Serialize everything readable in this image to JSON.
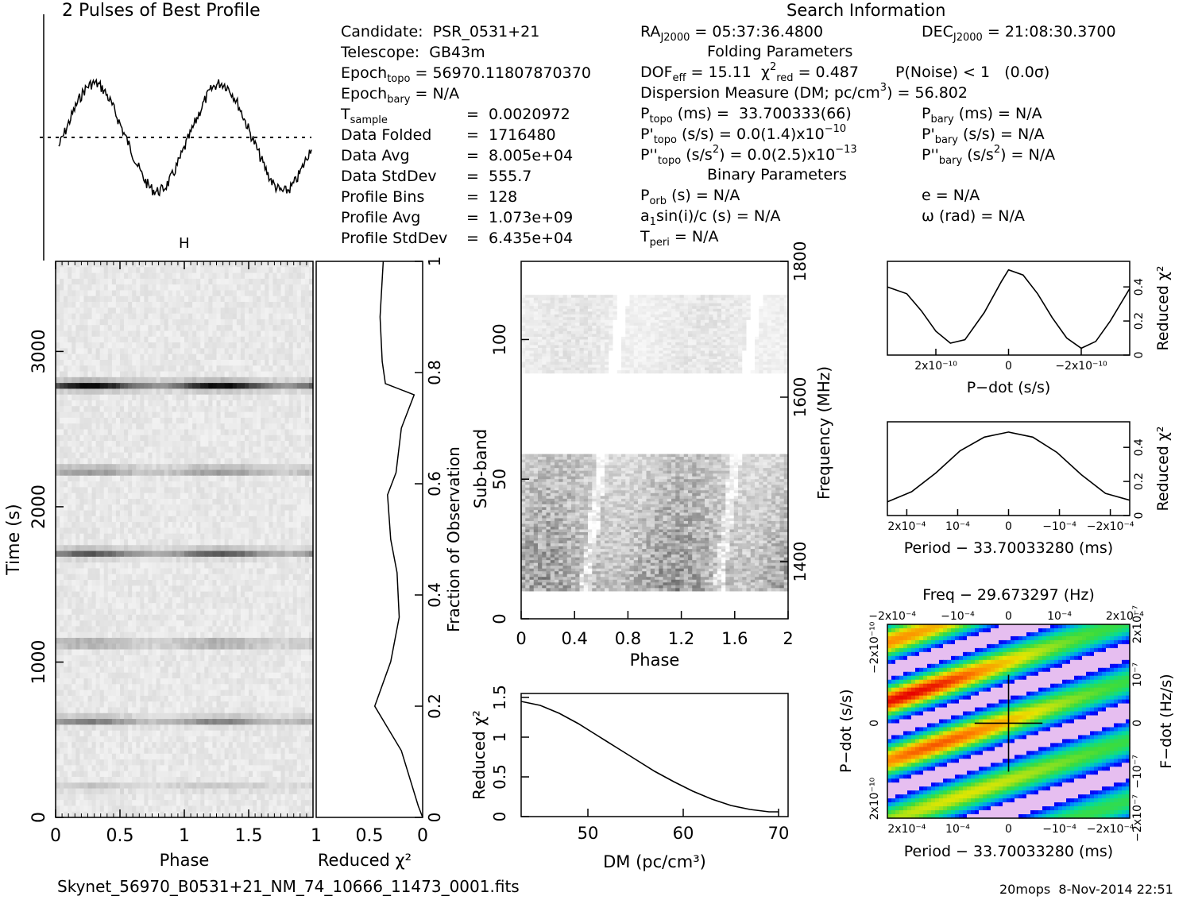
{
  "profile": {
    "title": "2 Pulses of Best Profile"
  },
  "search_info": {
    "heading": "Search Information",
    "left": [
      {
        "label": "Candidate:  PSR_0531+21"
      },
      {
        "label": "Telescope:  GB43m"
      },
      {
        "label": "Epoch",
        "sub": "topo",
        "rest": " = 56970.11807870370"
      },
      {
        "label": "Epoch",
        "sub": "bary",
        "rest": " = N/A"
      },
      {
        "label": "T",
        "sub": "sample",
        "rest": "",
        "value": "=  0.0020972"
      },
      {
        "label": "Data Folded",
        "value": "=  1716480"
      },
      {
        "label": "Data Avg",
        "value": "=  8.005e+04"
      },
      {
        "label": "Data StdDev",
        "value": "=  555.7"
      },
      {
        "label": "Profile Bins",
        "value": "=  128"
      },
      {
        "label": "Profile Avg",
        "value": "=  1.073e+09"
      },
      {
        "label": "Profile StdDev",
        "value": "=  6.435e+04"
      }
    ],
    "ra_label": "RA",
    "ra_sub": "J2000",
    "ra_value": " = 05:37:36.4800",
    "dec_label": "DEC",
    "dec_sub": "J2000",
    "dec_value": " = 21:08:30.3700",
    "folding_heading": "Folding Parameters",
    "dof_label": "DOF",
    "dof_sub": "eff",
    "dof_value": " = 15.11",
    "chi_label": "χ",
    "chi_sup": "2",
    "chi_sub": "red",
    "chi_value": " = 0.487",
    "pnoise": "P(Noise) < 1   (0.0σ)",
    "dm_line": "Dispersion Measure (DM; pc/cm",
    "dm_sup": "3",
    "dm_value": ") = 56.802",
    "ptopo_label": "P",
    "ptopo_sub": "topo",
    "ptopo_value": " (ms) =  33.700333(66)",
    "pbary_label": "P",
    "pbary_sub": "bary",
    "pbary_value": " (ms) = N/A",
    "pdtopo_label": "P'",
    "pdtopo_sub": "topo",
    "pdtopo_value": " (s/s) = 0.0(1.4)x10",
    "pdtopo_exp": "−10",
    "pdbary_label": "P'",
    "pdbary_sub": "bary",
    "pdbary_value": " (s/s) = N/A",
    "pddtopo_label": "P''",
    "pddtopo_sub": "topo",
    "pddtopo_value": " (s/s",
    "pddtopo_sup": "2",
    "pddtopo_value2": ") = 0.0(2.5)x10",
    "pddtopo_exp": "−13",
    "pddbary_label": "P''",
    "pddbary_sub": "bary",
    "pddbary_value": " (s/s",
    "pddbary_sup": "2",
    "pddbary_value2": ") = N/A",
    "binary_heading": "Binary Parameters",
    "porb_label": "P",
    "porb_sub": "orb",
    "porb_value": " (s) = N/A",
    "e_line": "e = N/A",
    "a1_label": "a",
    "a1_sub": "1",
    "a1_value": "sin(i)/c (s) = N/A",
    "omega_line": "ω (rad) = N/A",
    "tperi_label": "T",
    "tperi_sub": "peri",
    "tperi_value": " = N/A"
  },
  "footer": {
    "filename": "Skynet_56970_B0531+21_NM_74_10666_11473_0001.fits",
    "stamp": "20mops  8-Nov-2014 22:51"
  },
  "chart_data": [
    {
      "id": "time-phase",
      "type": "heatmap",
      "xlabel": "Phase",
      "ylabel": "Time (s)",
      "xlim": [
        0,
        2
      ],
      "ylim": [
        0,
        3580
      ],
      "xticks": [
        "0",
        "0.5",
        "1",
        "1.5"
      ],
      "yticks": [
        "0",
        "1000",
        "2000",
        "3000"
      ],
      "bright_bands_time_s": [
        200,
        620,
        1120,
        1700,
        2230,
        2780
      ]
    },
    {
      "id": "reduced-chi2-vs-fraction",
      "type": "line",
      "xlabel": "Reduced χ²",
      "ylabel": "Fraction of Observation",
      "xticks": [
        "1",
        "0.5",
        "0"
      ],
      "yticks": [
        "0",
        "0.2",
        "0.4",
        "0.6",
        "0.8",
        "1"
      ],
      "x_reduced_chi2": [
        0.0,
        0.04,
        0.2,
        0.45,
        0.3,
        0.22,
        0.24,
        0.3,
        0.33,
        0.25,
        0.2,
        0.08,
        0.35,
        0.38,
        0.4,
        0.37
      ],
      "y_fraction": [
        0.0,
        0.02,
        0.12,
        0.2,
        0.28,
        0.36,
        0.44,
        0.5,
        0.58,
        0.62,
        0.7,
        0.76,
        0.78,
        0.82,
        0.9,
        1.0
      ]
    },
    {
      "id": "subband-phase",
      "type": "heatmap",
      "xlabel": "Phase",
      "ylabel": "Sub-band",
      "y2label": "Frequency (MHz)",
      "xticks": [
        "0",
        "0.4",
        "0.8",
        "1.2",
        "1.6",
        "2"
      ],
      "yticks": [
        "0",
        "50",
        "100"
      ],
      "y2ticks": [
        "1400",
        "1600",
        "1800"
      ],
      "xlim": [
        0,
        2
      ],
      "ylim": [
        0,
        128
      ],
      "filled_subbands": [
        [
          10,
          59
        ],
        [
          88,
          116
        ]
      ]
    },
    {
      "id": "chi2-vs-dm",
      "type": "line",
      "xlabel": "DM (pc/cm³)",
      "ylabel": "Reduced χ²",
      "xticks": [
        "50",
        "60",
        "70"
      ],
      "yticks": [
        "0",
        "0.5",
        "1",
        "1.5"
      ],
      "xlim": [
        43,
        71
      ],
      "ylim": [
        0,
        1.55
      ],
      "x": [
        43,
        45,
        47,
        49,
        51,
        53,
        55,
        57,
        59,
        61,
        63,
        65,
        67,
        69,
        70
      ],
      "y": [
        1.45,
        1.4,
        1.3,
        1.17,
        1.02,
        0.87,
        0.72,
        0.57,
        0.44,
        0.32,
        0.22,
        0.14,
        0.09,
        0.06,
        0.06
      ]
    },
    {
      "id": "chi2-vs-pdot",
      "type": "line",
      "xlabel": "P−dot (s/s)",
      "ylabel": "Reduced χ²",
      "xticks": [
        "2x10⁻¹⁰",
        "0",
        "−2x10⁻¹⁰"
      ],
      "yticks": [
        "0",
        "0.2",
        "0.4"
      ],
      "ylim": [
        0,
        0.55
      ],
      "x_norm": [
        0,
        0.08,
        0.14,
        0.2,
        0.26,
        0.32,
        0.4,
        0.47,
        0.5,
        0.56,
        0.62,
        0.68,
        0.74,
        0.8,
        0.86,
        0.92,
        1.0
      ],
      "y": [
        0.4,
        0.36,
        0.26,
        0.14,
        0.07,
        0.09,
        0.25,
        0.43,
        0.5,
        0.47,
        0.36,
        0.22,
        0.1,
        0.04,
        0.08,
        0.2,
        0.39
      ]
    },
    {
      "id": "chi2-vs-period",
      "type": "line",
      "xlabel": "Period − 33.70033280 (ms)",
      "ylabel": "Reduced χ²",
      "xticks": [
        "2x10⁻⁴",
        "10⁻⁴",
        "0",
        "−10⁻⁴",
        "−2x10⁻⁴"
      ],
      "yticks": [
        "0",
        "0.2",
        "0.4"
      ],
      "ylim": [
        0,
        0.55
      ],
      "x_norm": [
        0,
        0.1,
        0.2,
        0.3,
        0.4,
        0.5,
        0.6,
        0.7,
        0.8,
        0.9,
        1.0
      ],
      "y": [
        0.08,
        0.14,
        0.25,
        0.38,
        0.46,
        0.49,
        0.46,
        0.37,
        0.24,
        0.13,
        0.09
      ]
    },
    {
      "id": "pdot-period-plane",
      "type": "heatmap",
      "title": "Freq − 29.673297 (Hz)",
      "xlabel": "Period − 33.70033280 (ms)",
      "ylabel": "P−dot (s/s)",
      "y2label": "F−dot (Hz/s)",
      "xticks_top": [
        "−2x10⁻⁴",
        "−10⁻⁴",
        "0",
        "10⁻⁴",
        "2x10⁻⁴"
      ],
      "xticks": [
        "2x10⁻⁴",
        "10⁻⁴",
        "0",
        "−10⁻⁴",
        "−2x10⁻⁴"
      ],
      "yticks": [
        "−2x10⁻¹⁰",
        "0",
        "2x10⁻¹⁰"
      ],
      "y2ticks": [
        "2x10⁻⁷",
        "10⁻⁷",
        "0",
        "−10⁻⁷",
        "−2x10⁻⁷"
      ]
    }
  ]
}
